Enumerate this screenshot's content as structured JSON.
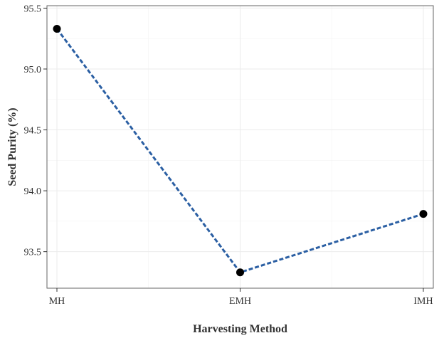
{
  "chart_data": {
    "type": "line",
    "title": "",
    "xlabel": "Harvesting Method",
    "ylabel": "Seed Purity (%)",
    "categories": [
      "MH",
      "EMH",
      "IMH"
    ],
    "series": [
      {
        "values": [
          95.33,
          93.33,
          93.81
        ]
      }
    ],
    "ylim": [
      93.2,
      95.52
    ],
    "yticks": [
      93.5,
      94.0,
      94.5,
      95.0,
      95.5
    ],
    "ytick_labels": [
      "93.5",
      "94.0",
      "94.5",
      "95.0",
      "95.5"
    ],
    "grid": true,
    "legend": "none",
    "line_style": "dashed",
    "colors": {
      "line": "#2b5fa3",
      "marker": "#000000",
      "grid": "#ebebeb",
      "frame": "#666666"
    }
  }
}
